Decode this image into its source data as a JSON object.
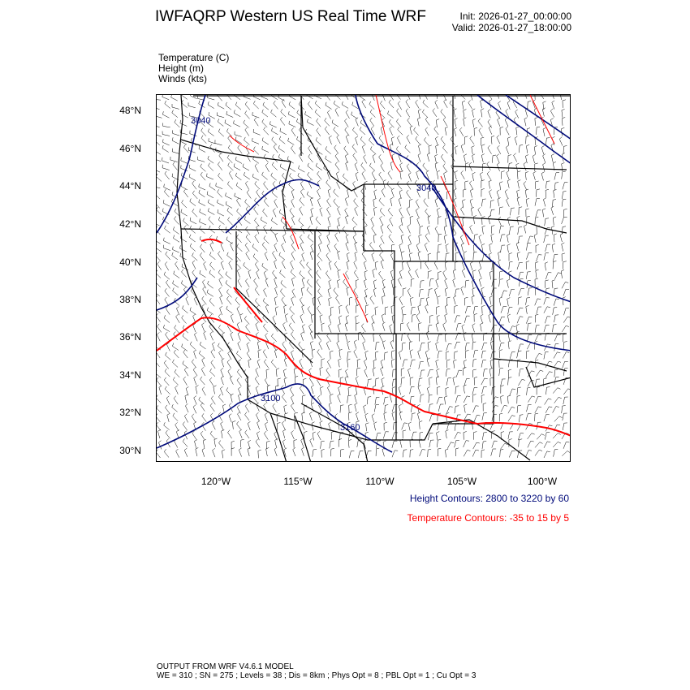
{
  "header": {
    "title": "IWFAQRP Western US Real Time WRF",
    "init": "Init: 2026-01-27_00:00:00",
    "valid": "Valid: 2026-01-27_18:00:00"
  },
  "fields": {
    "temperature": "Temperature   (C)",
    "height": "Height   (m)",
    "winds": "Winds   (kts)"
  },
  "axes": {
    "lat_labels": [
      "48°N",
      "46°N",
      "44°N",
      "42°N",
      "40°N",
      "38°N",
      "36°N",
      "34°N",
      "32°N",
      "30°N"
    ],
    "lon_labels": [
      "120°W",
      "115°W",
      "110°W",
      "105°W",
      "100°W"
    ]
  },
  "contour_labels": {
    "h1": "3040",
    "h2": "3040",
    "h3": "3100",
    "h4": "3160"
  },
  "legend": {
    "height_contours": "Height Contours: 2800 to 3220 by 60",
    "temperature_contours": "Temperature Contours: -35 to 15 by 5"
  },
  "footer": {
    "line1": "OUTPUT FROM WRF V4.6.1 MODEL",
    "line2": "WE = 310 ; SN = 275 ; Levels = 38 ; Dis = 8km ; Phys Opt = 8 ; PBL Opt = 1 ; Cu Opt = 3"
  },
  "colors": {
    "height": "#000a7a",
    "temperature": "#ff0000"
  }
}
